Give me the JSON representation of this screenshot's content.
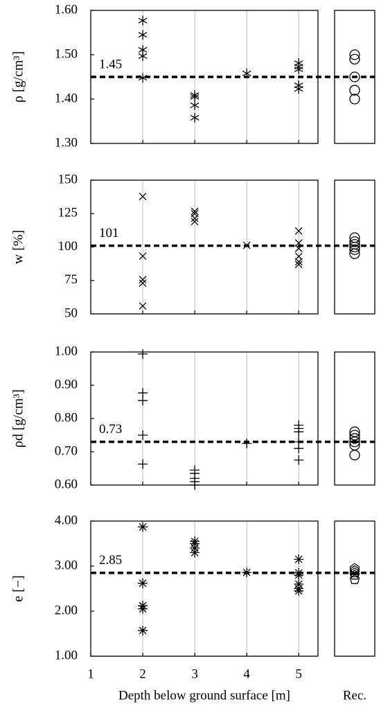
{
  "chart_data": [
    {
      "type": "scatter",
      "y_label": "ρ [g/cm³]",
      "marker": "star",
      "rec_marker": "circle",
      "xlim": [
        1,
        5.37
      ],
      "xticks": [
        1,
        2,
        3,
        4,
        5
      ],
      "ylim": [
        1.3,
        1.6
      ],
      "yticks": [
        {
          "value": 1.3,
          "label": "1.30"
        },
        {
          "value": 1.4,
          "label": "1.40"
        },
        {
          "value": 1.5,
          "label": "1.50"
        },
        {
          "value": 1.6,
          "label": "1.60"
        }
      ],
      "x": [
        2,
        2,
        2,
        2,
        2,
        3,
        3,
        3,
        3,
        4,
        5,
        5,
        5,
        5,
        5
      ],
      "values": [
        1.577,
        1.545,
        1.511,
        1.497,
        1.448,
        1.409,
        1.405,
        1.386,
        1.358,
        1.458,
        1.481,
        1.473,
        1.467,
        1.431,
        1.423
      ],
      "rec_values": [
        1.5,
        1.49,
        1.45,
        1.42,
        1.4
      ],
      "ref_line": 1.45
    },
    {
      "type": "scatter",
      "y_label": "w [%]",
      "marker": "x",
      "rec_marker": "circle",
      "xlim": [
        1,
        5.37
      ],
      "xticks": [
        1,
        2,
        3,
        4,
        5
      ],
      "ylim": [
        50,
        150
      ],
      "yticks": [
        50,
        75,
        100,
        125,
        150
      ],
      "x": [
        2,
        2,
        2,
        2,
        2,
        3,
        3,
        3,
        3,
        4,
        5,
        5,
        5,
        5,
        5,
        5
      ],
      "values": [
        137.8,
        93.2,
        75.6,
        73,
        55.9,
        126.7,
        125,
        121.5,
        119,
        101.3,
        112,
        103,
        99,
        93,
        89,
        87
      ],
      "rec_values": [
        107,
        104,
        102,
        100,
        98,
        95
      ],
      "ref_line": 101
    },
    {
      "type": "scatter",
      "y_label": "ρd [g/cm³]",
      "marker": "plus",
      "rec_marker": "circle",
      "xlim": [
        1,
        5.37
      ],
      "xticks": [
        1,
        2,
        3,
        4,
        5
      ],
      "ylim": [
        0.6,
        1.0
      ],
      "yticks": [
        {
          "value": 0.6,
          "label": "0.60"
        },
        {
          "value": 0.7,
          "label": "0.70"
        },
        {
          "value": 0.8,
          "label": "0.80"
        },
        {
          "value": 0.9,
          "label": "0.90"
        },
        {
          "value": 1.0,
          "label": "1.00"
        }
      ],
      "x": [
        2,
        2,
        2,
        2,
        2,
        3,
        3,
        3,
        3,
        3,
        4,
        5,
        5,
        5,
        5,
        5,
        5
      ],
      "values": [
        0.994,
        0.877,
        0.854,
        0.75,
        0.663,
        0.645,
        0.635,
        0.62,
        0.61,
        0.6,
        0.725,
        0.78,
        0.77,
        0.76,
        0.73,
        0.71,
        0.675
      ],
      "rec_values": [
        0.76,
        0.75,
        0.74,
        0.73,
        0.72,
        0.69
      ],
      "ref_line": 0.73
    },
    {
      "type": "scatter",
      "y_label": "e [−]",
      "marker": "asterisk",
      "rec_marker": "pentagon",
      "xlim": [
        1,
        5.37
      ],
      "xticks": [
        1,
        2,
        3,
        4,
        5
      ],
      "ylim": [
        1.0,
        4.0
      ],
      "yticks": [
        {
          "value": 1.0,
          "label": "1.00"
        },
        {
          "value": 2.0,
          "label": "2.00"
        },
        {
          "value": 3.0,
          "label": "3.00"
        },
        {
          "value": 4.0,
          "label": "4.00"
        }
      ],
      "x": [
        2,
        2,
        2,
        2,
        2,
        3,
        3,
        3,
        3,
        4,
        5,
        5,
        5,
        5,
        5,
        5
      ],
      "values": [
        3.87,
        2.62,
        2.12,
        2.05,
        1.57,
        3.55,
        3.5,
        3.4,
        3.3,
        2.86,
        3.15,
        2.85,
        2.8,
        2.6,
        2.5,
        2.45
      ],
      "rec_values": [
        2.95,
        2.9,
        2.85,
        2.8,
        2.7
      ],
      "ref_line": 2.85,
      "x_label": "Depth below ground surface [m]",
      "rec_label": "Rec."
    }
  ]
}
